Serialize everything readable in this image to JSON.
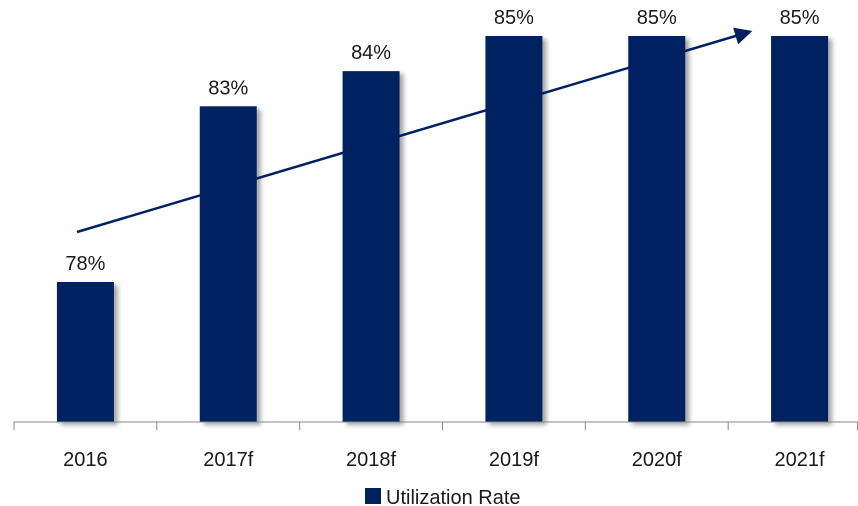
{
  "chart_data": {
    "type": "bar",
    "categories": [
      "2016",
      "2017f",
      "2018f",
      "2019f",
      "2020f",
      "2021f"
    ],
    "series": [
      {
        "name": "Utilization Rate",
        "values": [
          78,
          83,
          84,
          85,
          85,
          85
        ],
        "value_labels": [
          "78%",
          "83%",
          "84%",
          "85%",
          "85%",
          "85%"
        ],
        "color": "#002060"
      }
    ],
    "ylim": [
      75,
      85
    ],
    "y_unit": "%",
    "grid": false,
    "legend": {
      "position": "bottom",
      "entries": [
        "Utilization Rate"
      ]
    },
    "annotations": [
      {
        "type": "trend-arrow",
        "color": "#002060"
      }
    ],
    "title": "",
    "xlabel": "",
    "ylabel": ""
  }
}
